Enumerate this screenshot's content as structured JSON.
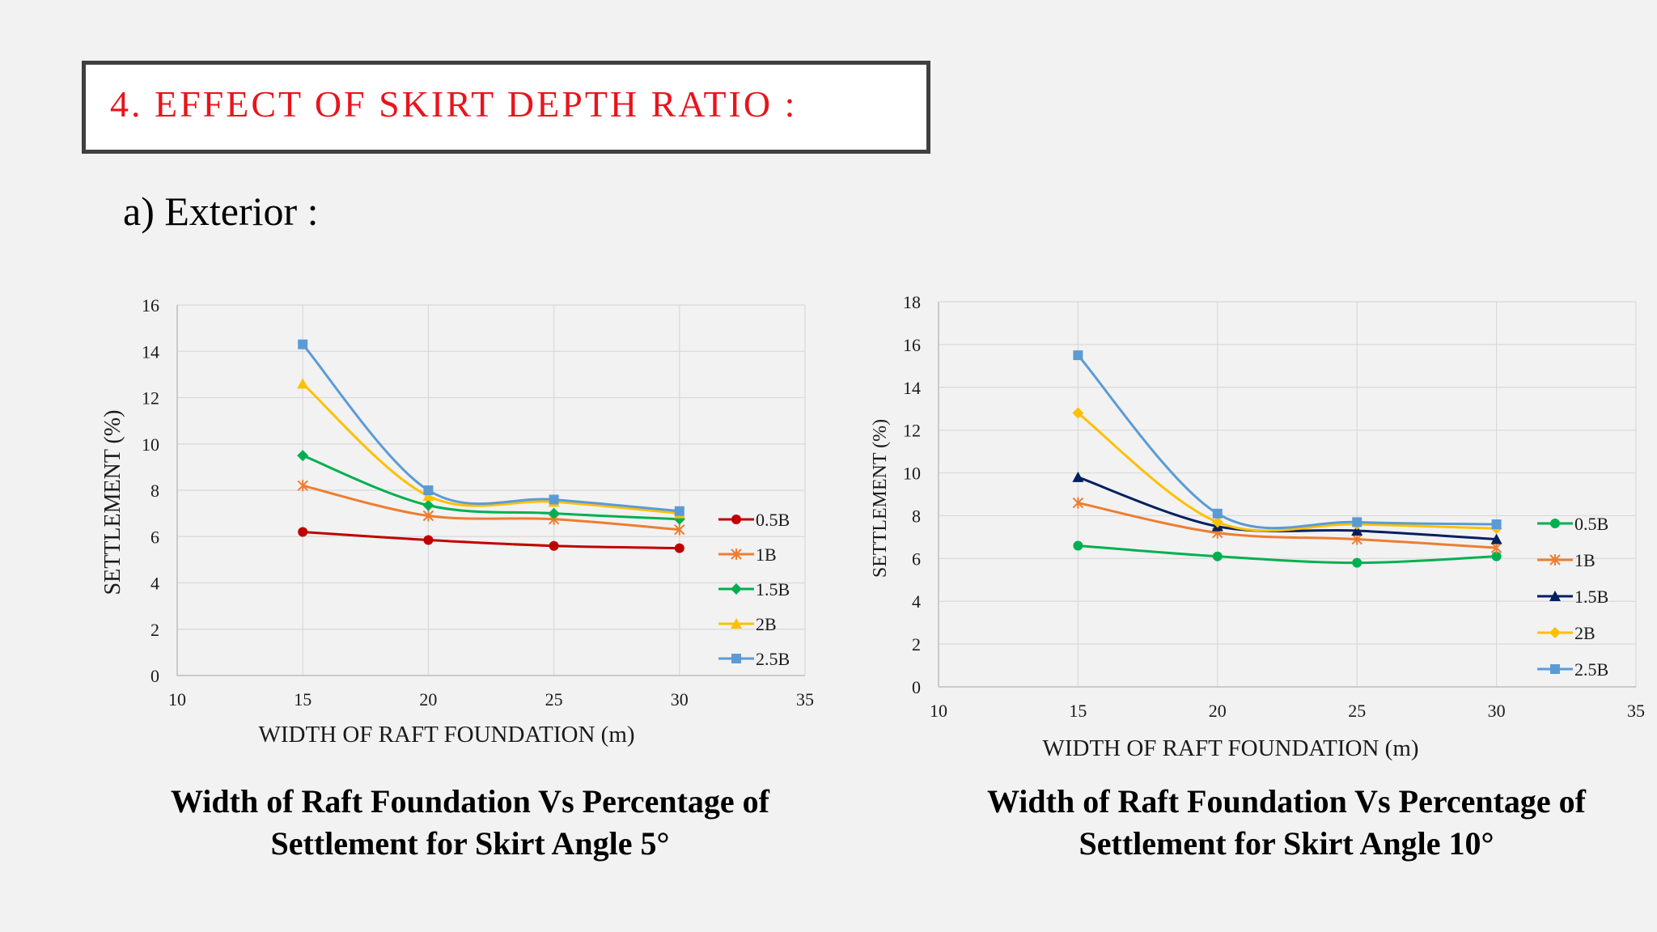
{
  "heading": {
    "title": "4.   EFFECT OF SKIRT DEPTH RATIO :",
    "title_color": "#e8141c"
  },
  "subheading": "a)   Exterior :",
  "captions": [
    {
      "line1": "Width of Raft Foundation Vs Percentage of",
      "line2": "Settlement for Skirt Angle 5°"
    },
    {
      "line1": "Width of Raft Foundation Vs Percentage of",
      "line2": "Settlement for Skirt Angle 10°"
    }
  ],
  "chart_data": [
    {
      "type": "line",
      "xlabel": "WIDTH OF RAFT FOUNDATION (m)",
      "ylabel": "SETTLEMENT (%)",
      "xlim": [
        10,
        35
      ],
      "ylim": [
        0,
        16
      ],
      "xticks": [
        10,
        15,
        20,
        25,
        30,
        35
      ],
      "yticks": [
        0,
        2,
        4,
        6,
        8,
        10,
        12,
        14,
        16
      ],
      "grid": true,
      "legend": "right",
      "x": [
        15,
        20,
        25,
        30
      ],
      "series": [
        {
          "name": "0.5B",
          "values": [
            6.2,
            5.85,
            5.6,
            5.5
          ],
          "color": "#c00000",
          "marker": "circle"
        },
        {
          "name": "1B",
          "values": [
            8.2,
            6.9,
            6.75,
            6.3
          ],
          "color": "#ed7d31",
          "marker": "star"
        },
        {
          "name": "1.5B",
          "values": [
            9.5,
            7.35,
            7.0,
            6.75
          ],
          "color": "#00b050",
          "marker": "diamond"
        },
        {
          "name": "2B",
          "values": [
            12.6,
            7.75,
            7.5,
            7.0
          ],
          "color": "#ffc000",
          "marker": "triangle"
        },
        {
          "name": "2.5B",
          "values": [
            14.3,
            8.0,
            7.6,
            7.1
          ],
          "color": "#5b9bd5",
          "marker": "square"
        }
      ]
    },
    {
      "type": "line",
      "xlabel": "WIDTH OF RAFT FOUNDATION (m)",
      "ylabel": "SETTLEMENT (%)",
      "xlim": [
        10,
        35
      ],
      "ylim": [
        0,
        18
      ],
      "xticks": [
        10,
        15,
        20,
        25,
        30,
        35
      ],
      "yticks": [
        0,
        2,
        4,
        6,
        8,
        10,
        12,
        14,
        16,
        18
      ],
      "grid": true,
      "legend": "right",
      "x": [
        15,
        20,
        25,
        30
      ],
      "series": [
        {
          "name": "0.5B",
          "values": [
            6.6,
            6.1,
            5.8,
            6.1
          ],
          "color": "#00b050",
          "marker": "circle"
        },
        {
          "name": "1B",
          "values": [
            8.6,
            7.2,
            6.9,
            6.5
          ],
          "color": "#ed7d31",
          "marker": "star"
        },
        {
          "name": "1.5B",
          "values": [
            9.8,
            7.5,
            7.3,
            6.9
          ],
          "color": "#002060",
          "marker": "triangle"
        },
        {
          "name": "2B",
          "values": [
            12.8,
            7.7,
            7.6,
            7.4
          ],
          "color": "#ffc000",
          "marker": "diamond"
        },
        {
          "name": "2.5B",
          "values": [
            15.5,
            8.1,
            7.7,
            7.6
          ],
          "color": "#5b9bd5",
          "marker": "square"
        }
      ]
    }
  ]
}
